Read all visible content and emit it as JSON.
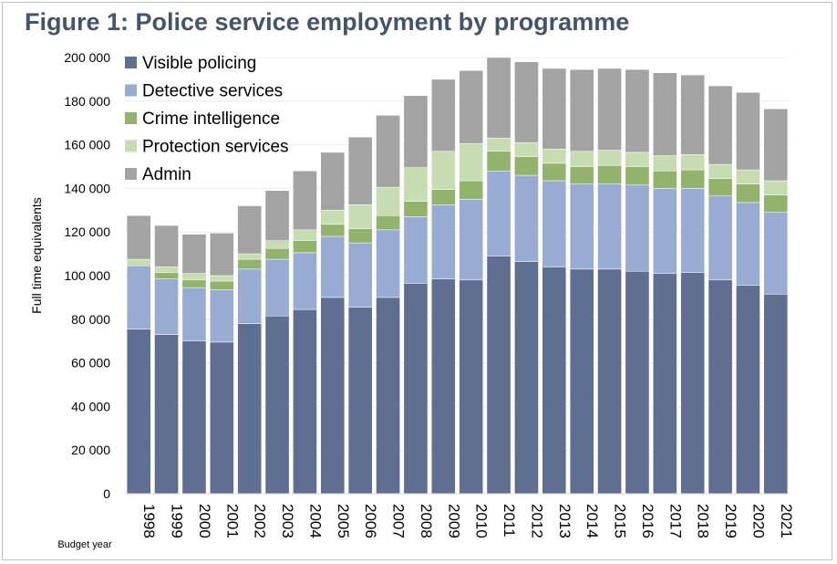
{
  "figure_title": "Figure 1: Police service employment by programme",
  "chart_data": {
    "type": "bar",
    "stacked": true,
    "title": "Figure 1: Police service employment by programme",
    "xlabel": "Budget year",
    "ylabel": "Full time equivalents",
    "ylim": [
      0,
      200000
    ],
    "yticks": [
      0,
      20000,
      40000,
      60000,
      80000,
      100000,
      120000,
      140000,
      160000,
      180000,
      200000
    ],
    "ytick_labels": [
      "0",
      "20 000",
      "40 000",
      "60 000",
      "80 000",
      "100 000",
      "120 000",
      "140 000",
      "160 000",
      "180 000",
      "200 000"
    ],
    "legend_position": "top-left",
    "categories": [
      "1998",
      "1999",
      "2000",
      "2001",
      "2002",
      "2003",
      "2004",
      "2005",
      "2006",
      "2007",
      "2008",
      "2009",
      "2010",
      "2011",
      "2012",
      "2013",
      "2014",
      "2015",
      "2016",
      "2017",
      "2018",
      "2019",
      "2020",
      "2021"
    ],
    "series": [
      {
        "name": "Visible policing",
        "color": "#5f6f91",
        "values": [
          75500,
          73000,
          70000,
          69500,
          78000,
          81500,
          84500,
          90000,
          85500,
          90000,
          96500,
          98500,
          98000,
          109000,
          106500,
          104000,
          103000,
          103000,
          102000,
          101000,
          101500,
          98000,
          95500,
          91500
        ]
      },
      {
        "name": "Detective services",
        "color": "#98abd2",
        "values": [
          29000,
          25500,
          24500,
          24000,
          25000,
          26000,
          26000,
          28000,
          29500,
          31000,
          30500,
          34000,
          37000,
          39000,
          39500,
          39500,
          39000,
          39000,
          39500,
          39000,
          38500,
          38500,
          38000,
          37500
        ]
      },
      {
        "name": "Crime intelligence",
        "color": "#92b36b",
        "values": [
          0,
          3000,
          3500,
          4000,
          4500,
          5000,
          5500,
          5500,
          6500,
          6500,
          7000,
          7000,
          8500,
          9000,
          8500,
          8000,
          8000,
          8500,
          8500,
          8000,
          8500,
          8000,
          8500,
          8000
        ]
      },
      {
        "name": "Protection services",
        "color": "#c7dcb0",
        "values": [
          3000,
          2500,
          3000,
          2500,
          2500,
          3500,
          5000,
          6500,
          11000,
          13000,
          15500,
          17500,
          17000,
          6000,
          6500,
          6500,
          7000,
          7000,
          6500,
          7000,
          7000,
          6500,
          6500,
          6500
        ]
      },
      {
        "name": "Admin",
        "color": "#a3a3a3",
        "values": [
          20000,
          19000,
          18000,
          19500,
          22000,
          23000,
          27000,
          26500,
          31000,
          33000,
          33000,
          33000,
          33500,
          37000,
          37000,
          37000,
          37500,
          37500,
          38000,
          38000,
          36500,
          36000,
          35500,
          33000
        ]
      }
    ]
  }
}
